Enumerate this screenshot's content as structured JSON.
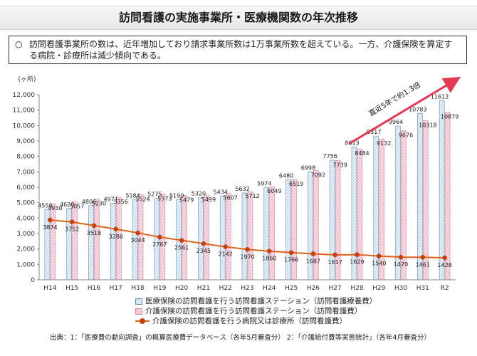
{
  "header": {
    "title": "訪問看護の実施事業所・医療機関数の年次推移"
  },
  "summary": {
    "marker": "○",
    "text": "訪問看護事業所の数は、近年増加しており請求事業所数は1万事業所数を超えている。一方、介護保険を算定する病院・診療所は減少傾向である。"
  },
  "footer": {
    "source": "出典：1：「医療費の動向調査」の概算医療費データベース（各年5月審査分） 2：「介護給付費等実態統計」（各年4月審査分）"
  },
  "chart_data": {
    "type": "bar",
    "title": "",
    "ylabel": "(ヶ所)",
    "ylim": [
      0,
      12000
    ],
    "yticks": [
      0,
      1000,
      2000,
      3000,
      4000,
      5000,
      6000,
      7000,
      8000,
      9000,
      10000,
      11000,
      12000
    ],
    "ytick_labels": [
      "0",
      "1,000",
      "2,000",
      "3,000",
      "4,000",
      "5,000",
      "6,000",
      "7,000",
      "8,000",
      "9,000",
      "10,000",
      "11,000",
      "12,000"
    ],
    "categories": [
      "H14",
      "H15",
      "H16",
      "H17",
      "H18",
      "H19",
      "H20",
      "H21",
      "H22",
      "H23",
      "H24",
      "H25",
      "H26",
      "H27",
      "H28",
      "H29",
      "H30",
      "H31",
      "R2"
    ],
    "series": [
      {
        "name": "医療保険の訪問看護を行う訪問看護ステーション（訪問看護療養費）",
        "kind": "bar",
        "color": "#c9ddf0",
        "values": [
          4550,
          4620,
          4806,
          4971,
          5184,
          5275,
          5190,
          5320,
          5434,
          5632,
          5974,
          6480,
          6998,
          7756,
          8613,
          9317,
          9964,
          10783,
          11612
        ]
      },
      {
        "name": "介護保険の訪問看護を行う訪問看護ステーション（訪問看護費）",
        "kind": "bar",
        "color": "#f4b8c8",
        "values": [
          4930,
          5057,
          5230,
          5356,
          5524,
          5573,
          5479,
          5499,
          5607,
          5712,
          6049,
          6519,
          7092,
          7739,
          8484,
          9132,
          9676,
          10318,
          10879
        ]
      },
      {
        "name": "介護保険の訪問看護を行う病院又は診療所（訪問看護費）",
        "kind": "line",
        "color": "#e0611a",
        "values": [
          3874,
          3752,
          3518,
          3286,
          3044,
          2767,
          2561,
          2345,
          2142,
          1970,
          1860,
          1766,
          1687,
          1617,
          1629,
          1540,
          1470,
          1461,
          1428
        ]
      }
    ],
    "annotation": "直近5年で約1.3倍",
    "grid": false,
    "legend_position": "bottom"
  }
}
